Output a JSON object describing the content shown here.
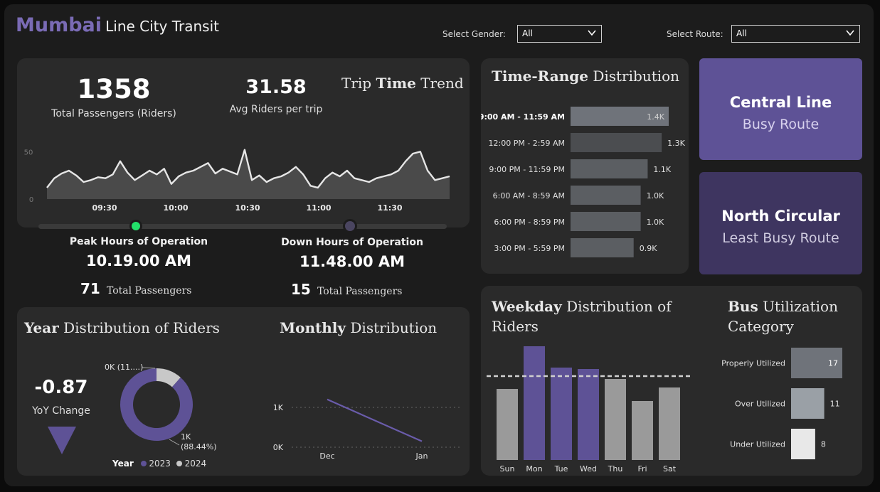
{
  "header": {
    "brand": "Mumbai",
    "subtitle": "Line City Transit",
    "gender_label": "Select Gender:",
    "gender_value": "All",
    "route_label": "Select Route:",
    "route_value": "All",
    "brand_color": "#7a6bb5"
  },
  "kpis": {
    "total_passengers_value": "1358",
    "total_passengers_label": "Total Passengers (Riders)",
    "avg_riders_value": "31.58",
    "avg_riders_label": "Avg Riders per trip",
    "trip_title_a": "Trip",
    "trip_title_b": "Time",
    "trip_title_c": "Trend"
  },
  "trend_chart": {
    "type": "area",
    "y_ticks": [
      "50",
      "0"
    ],
    "x_ticks": [
      "09:30",
      "10:00",
      "10:30",
      "11:00",
      "11:30"
    ],
    "values": [
      12,
      22,
      27,
      30,
      25,
      18,
      20,
      23,
      22,
      26,
      40,
      28,
      20,
      25,
      30,
      26,
      32,
      16,
      24,
      28,
      30,
      34,
      38,
      27,
      32,
      29,
      26,
      52,
      20,
      25,
      18,
      22,
      24,
      28,
      34,
      26,
      14,
      12,
      22,
      28,
      24,
      30,
      22,
      20,
      18,
      22,
      24,
      26,
      30,
      40,
      48,
      50,
      30,
      20,
      22,
      24
    ]
  },
  "peak": {
    "label": "Peak Hours of Operation",
    "time": "10.19.00 AM",
    "count": "71",
    "count_label": "Total Passengers"
  },
  "down": {
    "label": "Down Hours of Operation",
    "time": "11.48.00 AM",
    "count": "15",
    "count_label": "Total Passengers"
  },
  "time_range": {
    "title_a": "Time-Range",
    "title_b": "Distribution",
    "chart_data": {
      "type": "bar",
      "categories": [
        "9:00 AM - 11:59 AM",
        "12:00 PM - 2:59 AM",
        "9:00 PM - 11:59 PM",
        "6:00 AM - 8:59 AM",
        "6:00 PM - 8:59 PM",
        "3:00 PM - 5:59 PM"
      ],
      "values": [
        1400,
        1300,
        1100,
        1000,
        1000,
        900
      ],
      "labels": [
        "1.4K",
        "1.3K",
        "1.1K",
        "1.0K",
        "1.0K",
        "0.9K"
      ]
    }
  },
  "routes": {
    "busy_name": "Central Line",
    "busy_label": "Busy Route",
    "least_name": "North Circular",
    "least_label": "Least Busy Route",
    "busy_color": "#5e5296",
    "least_color": "#3e3560"
  },
  "year_dist": {
    "title_a": "Year",
    "title_b": "Distribution of Riders",
    "yoy_value": "-0.87",
    "yoy_label": "YoY Change",
    "legend_title": "Year",
    "chart_data": {
      "type": "pie",
      "categories": [
        "2023",
        "2024"
      ],
      "values": [
        88.44,
        11.56
      ],
      "labels": [
        "1K\n(88.44%)",
        "0K (11....)"
      ],
      "colors": [
        "#5e5296",
        "#c8c8c8"
      ]
    }
  },
  "monthly": {
    "title_a": "Monthly",
    "title_b": "Distribution",
    "chart_data": {
      "type": "line",
      "categories": [
        "Dec",
        "Jan"
      ],
      "values": [
        1200,
        150
      ],
      "y_ticks": [
        "1K",
        "0K"
      ],
      "ylim": [
        0,
        1500
      ]
    }
  },
  "weekday": {
    "title_a": "Weekday",
    "title_b": "Distribution of",
    "title_c": "Riders",
    "chart_data": {
      "type": "bar",
      "categories": [
        "Sun",
        "Mon",
        "Tue",
        "Wed",
        "Thu",
        "Fri",
        "Sat"
      ],
      "values": [
        100,
        160,
        130,
        128,
        114,
        83,
        102
      ],
      "average": 118,
      "highlight": [
        false,
        true,
        true,
        true,
        false,
        false,
        false
      ]
    }
  },
  "utilization": {
    "title_a": "Bus",
    "title_b": "Utilization",
    "title_c": "Category",
    "chart_data": {
      "type": "bar",
      "categories": [
        "Properly Utilized",
        "Over Utilized",
        "Under Utilized"
      ],
      "values": [
        17,
        11,
        8
      ],
      "colors": [
        "#6f737a",
        "#9aa0a6",
        "#e8e8e8"
      ]
    }
  }
}
